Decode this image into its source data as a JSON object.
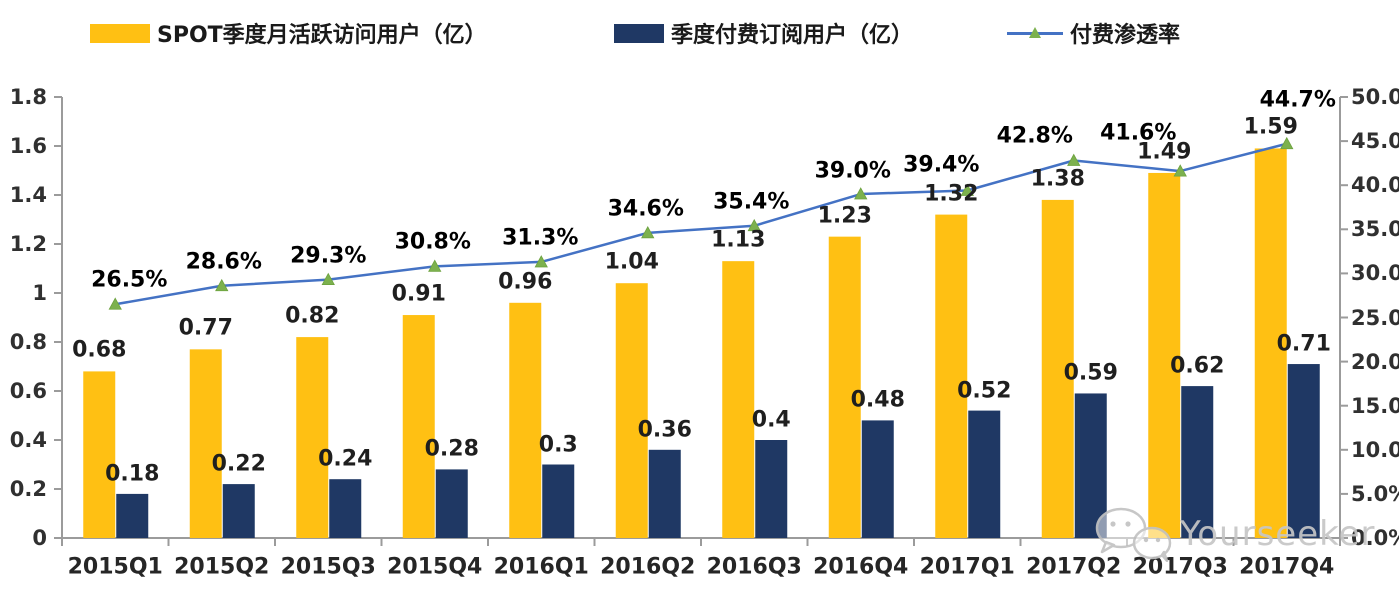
{
  "legend": [
    {
      "label": "SPOT季度月活跃访问用户（亿）",
      "type": "bar",
      "color": "#FFC013"
    },
    {
      "label": "季度付费订阅用户（亿）",
      "type": "bar",
      "color": "#1F3864"
    },
    {
      "label": "付费渗透率",
      "type": "line",
      "color": "#4472C4",
      "marker_color": "#7CB14E"
    }
  ],
  "watermark": {
    "text": "Yourseeker",
    "icon": "wechat-icon"
  },
  "colors": {
    "mau_bar": "#FFC013",
    "subs_bar": "#1F3864",
    "line": "#4472C4",
    "marker": "#7CB14E",
    "axis": "#9B9B9B",
    "watermark": "#C6C6C6"
  },
  "chart_data": {
    "type": "bar",
    "subtype": "clustered bars with secondary-axis line",
    "categories": [
      "2015Q1",
      "2015Q2",
      "2015Q3",
      "2015Q4",
      "2016Q1",
      "2016Q2",
      "2016Q3",
      "2016Q4",
      "2017Q1",
      "2017Q2",
      "2017Q3",
      "2017Q4"
    ],
    "series": [
      {
        "name": "SPOT季度月活跃访问用户（亿）",
        "type": "bar",
        "axis": "left",
        "color": "#FFC013",
        "values": [
          0.68,
          0.77,
          0.82,
          0.91,
          0.96,
          1.04,
          1.13,
          1.23,
          1.32,
          1.38,
          1.49,
          1.59
        ],
        "labels": [
          "0.68",
          "0.77",
          "0.82",
          "0.91",
          "0.96",
          "1.04",
          "1.13",
          "1.23",
          "1.32",
          "1.38",
          "1.49",
          "1.59"
        ]
      },
      {
        "name": "季度付费订阅用户（亿）",
        "type": "bar",
        "axis": "left",
        "color": "#1F3864",
        "values": [
          0.18,
          0.22,
          0.24,
          0.28,
          0.3,
          0.36,
          0.4,
          0.48,
          0.52,
          0.59,
          0.62,
          0.71
        ],
        "labels": [
          "0.18",
          "0.22",
          "0.24",
          "0.28",
          "0.3",
          "0.36",
          "0.4",
          "0.48",
          "0.52",
          "0.59",
          "0.62",
          "0.71"
        ]
      },
      {
        "name": "付费渗透率",
        "type": "line",
        "axis": "right",
        "color": "#4472C4",
        "marker": "triangle",
        "marker_color": "#7CB14E",
        "values": [
          26.5,
          28.6,
          29.3,
          30.8,
          31.3,
          34.6,
          35.4,
          39.0,
          39.4,
          42.8,
          41.6,
          44.7
        ],
        "labels": [
          "26.5%",
          "28.6%",
          "29.3%",
          "30.8%",
          "31.3%",
          "34.6%",
          "35.4%",
          "39.0%",
          "39.4%",
          "42.8%",
          "41.6%",
          "44.7%"
        ]
      }
    ],
    "left_axis": {
      "min": 0,
      "max": 1.8,
      "step": 0.2,
      "ticks": [
        "0",
        "0.2",
        "0.4",
        "0.6",
        "0.8",
        "1",
        "1.2",
        "1.4",
        "1.6",
        "1.8"
      ]
    },
    "right_axis": {
      "min": 0,
      "max": 50,
      "step": 5,
      "ticks": [
        "0.0%",
        "5.0%",
        "10.0%",
        "15.0%",
        "20.0%",
        "25.0%",
        "30.0%",
        "35.0%",
        "40.0%",
        "45.0%",
        "50.0%"
      ]
    },
    "grid": false,
    "legend_position": "top"
  }
}
